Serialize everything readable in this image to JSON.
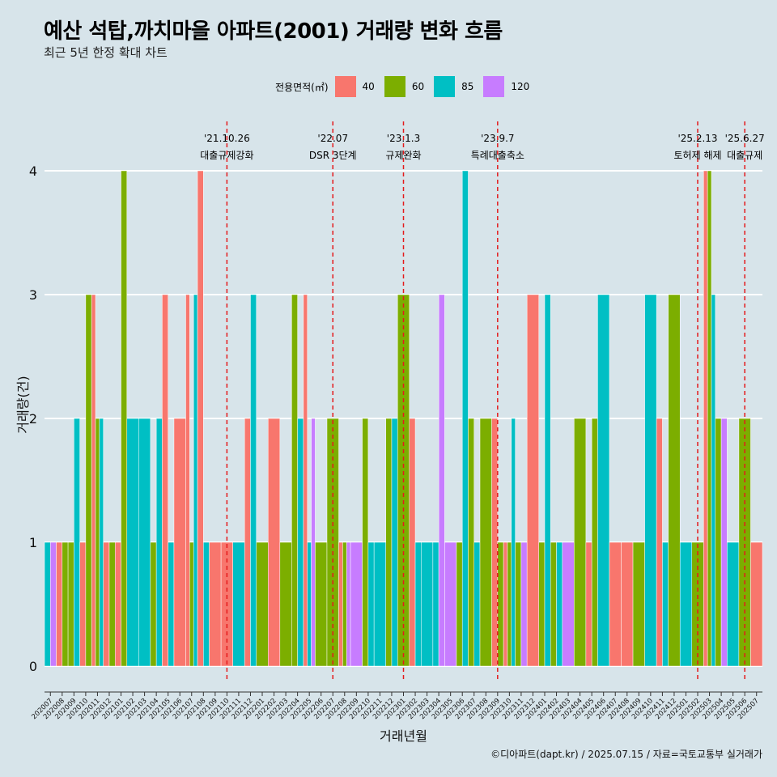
{
  "header": {
    "title": "예산 석탑,까치마을 아파트(2001) 거래량 변화 흐름",
    "subtitle": "최근 5년 한정 확대 차트"
  },
  "legend": {
    "title": "전용면적(㎡)",
    "items": [
      {
        "label": "40",
        "color": "#F8766D"
      },
      {
        "label": "60",
        "color": "#7CAE00"
      },
      {
        "label": "85",
        "color": "#00BFC4"
      },
      {
        "label": "120",
        "color": "#C77CFF"
      }
    ]
  },
  "footer": {
    "text": "©디아파트(dapt.kr) / 2025.07.15 / 자료=국토교통부 실거래가"
  },
  "chart_data": {
    "type": "bar",
    "xlabel": "거래년월",
    "ylabel": "거래량(건)",
    "ylim": [
      0,
      4
    ],
    "yticks": [
      0,
      1,
      2,
      3,
      4
    ],
    "grid": true,
    "legend_position": "top",
    "categories": [
      "202007",
      "202008",
      "202009",
      "202010",
      "202011",
      "202012",
      "202101",
      "202102",
      "202103",
      "202104",
      "202105",
      "202106",
      "202107",
      "202108",
      "202109",
      "202110",
      "202111",
      "202112",
      "202201",
      "202202",
      "202203",
      "202204",
      "202205",
      "202206",
      "202207",
      "202208",
      "202209",
      "202210",
      "202211",
      "202212",
      "202301",
      "202302",
      "202303",
      "202304",
      "202305",
      "202306",
      "202307",
      "202308",
      "202309",
      "202310",
      "202311",
      "202312",
      "202401",
      "202402",
      "202403",
      "202404",
      "202405",
      "202406",
      "202407",
      "202408",
      "202409",
      "202410",
      "202411",
      "202412",
      "202501",
      "202502",
      "202503",
      "202504",
      "202505",
      "202506",
      "202507"
    ],
    "series": [
      {
        "name": "40",
        "color": "#F8766D",
        "values": [
          0,
          1,
          0,
          1,
          3,
          1,
          1,
          0,
          0,
          0,
          3,
          2,
          3,
          4,
          1,
          1,
          0,
          2,
          0,
          2,
          0,
          0,
          3,
          0,
          0,
          1,
          0,
          0,
          0,
          0,
          0,
          2,
          0,
          0,
          0,
          0,
          0,
          0,
          2,
          1,
          0,
          3,
          0,
          0,
          0,
          0,
          1,
          0,
          1,
          1,
          0,
          0,
          2,
          0,
          0,
          0,
          4,
          0,
          0,
          0,
          1
        ]
      },
      {
        "name": "60",
        "color": "#7CAE00",
        "values": [
          0,
          1,
          1,
          3,
          2,
          1,
          4,
          0,
          0,
          1,
          0,
          0,
          1,
          0,
          0,
          0,
          0,
          0,
          1,
          0,
          1,
          3,
          0,
          1,
          2,
          1,
          0,
          2,
          0,
          2,
          3,
          0,
          0,
          0,
          0,
          1,
          2,
          2,
          1,
          1,
          1,
          0,
          1,
          1,
          0,
          2,
          2,
          0,
          0,
          0,
          1,
          0,
          0,
          3,
          0,
          1,
          4,
          2,
          0,
          2,
          0
        ]
      },
      {
        "name": "85",
        "color": "#00BFC4",
        "values": [
          1,
          0,
          2,
          0,
          2,
          0,
          0,
          2,
          2,
          2,
          1,
          0,
          3,
          1,
          0,
          0,
          1,
          3,
          0,
          0,
          0,
          2,
          1,
          0,
          0,
          0,
          0,
          1,
          1,
          2,
          0,
          1,
          1,
          1,
          0,
          4,
          1,
          0,
          0,
          2,
          0,
          0,
          3,
          1,
          0,
          0,
          0,
          3,
          0,
          0,
          0,
          3,
          1,
          0,
          1,
          0,
          3,
          0,
          1,
          0,
          0
        ]
      },
      {
        "name": "120",
        "color": "#C77CFF",
        "values": [
          1,
          0,
          0,
          0,
          0,
          0,
          0,
          0,
          0,
          0,
          0,
          0,
          0,
          0,
          0,
          0,
          0,
          0,
          0,
          0,
          0,
          0,
          2,
          0,
          0,
          1,
          1,
          0,
          0,
          0,
          0,
          0,
          0,
          3,
          1,
          0,
          0,
          0,
          0,
          0,
          1,
          0,
          0,
          0,
          1,
          0,
          0,
          0,
          0,
          0,
          0,
          0,
          0,
          0,
          0,
          0,
          0,
          2,
          0,
          0,
          0
        ]
      }
    ],
    "annotations": [
      {
        "date": "'21.10.26",
        "text": "대출규제강화",
        "at": "202110"
      },
      {
        "date": "'22.07",
        "text": "DSR 3단계",
        "at": "202207"
      },
      {
        "date": "'23.1.3",
        "text": "규제완화",
        "at": "202301"
      },
      {
        "date": "'23.9.7",
        "text": "특례대출축소",
        "at": "202309"
      },
      {
        "date": "'25.2.13",
        "text": "토허제 해제",
        "at": "202502"
      },
      {
        "date": "'25.6.27",
        "text": "대출규제",
        "at": "202506"
      }
    ]
  }
}
